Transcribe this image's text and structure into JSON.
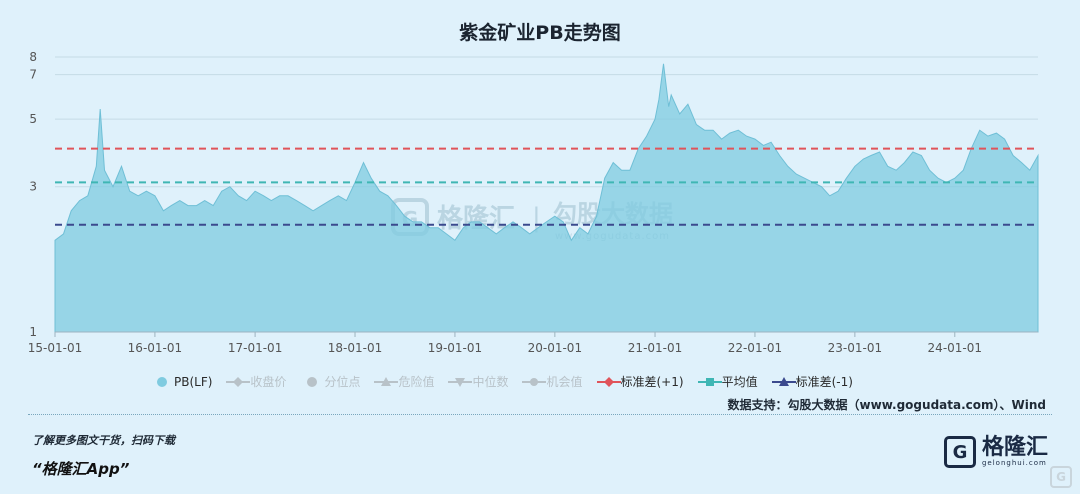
{
  "chart_data": {
    "type": "area",
    "title": "紫金矿业PB走势图",
    "x_tick_labels": [
      "15-01-01",
      "16-01-01",
      "17-01-01",
      "18-01-01",
      "19-01-01",
      "20-01-01",
      "21-01-01",
      "22-01-01",
      "23-01-01",
      "24-01-01"
    ],
    "y_tick_labels": [
      "1",
      "3",
      "5",
      "7",
      "8"
    ],
    "y_scale": "log",
    "ylim": [
      1,
      8
    ],
    "x_range": [
      "2015-01-01",
      "2024-10-31"
    ],
    "grid": "horizontal",
    "legend_position": "bottom",
    "series": [
      {
        "name": "PB(LF)",
        "color": "#7fcbe0",
        "x": [
          "2015-01-01",
          "2015-02-01",
          "2015-03-01",
          "2015-04-01",
          "2015-05-01",
          "2015-06-01",
          "2015-06-15",
          "2015-07-01",
          "2015-08-01",
          "2015-09-01",
          "2015-10-01",
          "2015-11-01",
          "2015-12-01",
          "2016-01-01",
          "2016-02-01",
          "2016-03-01",
          "2016-04-01",
          "2016-05-01",
          "2016-06-01",
          "2016-07-01",
          "2016-08-01",
          "2016-09-01",
          "2016-10-01",
          "2016-11-01",
          "2016-12-01",
          "2017-01-01",
          "2017-02-01",
          "2017-03-01",
          "2017-04-01",
          "2017-05-01",
          "2017-06-01",
          "2017-07-01",
          "2017-08-01",
          "2017-09-01",
          "2017-10-01",
          "2017-11-01",
          "2017-12-01",
          "2018-01-01",
          "2018-02-01",
          "2018-03-01",
          "2018-04-01",
          "2018-05-01",
          "2018-06-01",
          "2018-07-01",
          "2018-08-01",
          "2018-09-01",
          "2018-10-01",
          "2018-11-01",
          "2018-12-01",
          "2019-01-01",
          "2019-02-01",
          "2019-03-01",
          "2019-04-01",
          "2019-05-01",
          "2019-06-01",
          "2019-07-01",
          "2019-08-01",
          "2019-09-01",
          "2019-10-01",
          "2019-11-01",
          "2019-12-01",
          "2020-01-01",
          "2020-02-01",
          "2020-03-01",
          "2020-04-01",
          "2020-05-01",
          "2020-06-01",
          "2020-07-01",
          "2020-08-01",
          "2020-09-01",
          "2020-10-01",
          "2020-11-01",
          "2020-12-01",
          "2021-01-01",
          "2021-01-15",
          "2021-02-01",
          "2021-02-20",
          "2021-03-01",
          "2021-04-01",
          "2021-05-01",
          "2021-06-01",
          "2021-07-01",
          "2021-08-01",
          "2021-09-01",
          "2021-10-01",
          "2021-11-01",
          "2021-12-01",
          "2022-01-01",
          "2022-02-01",
          "2022-03-01",
          "2022-04-01",
          "2022-05-01",
          "2022-06-01",
          "2022-07-01",
          "2022-08-01",
          "2022-09-01",
          "2022-10-01",
          "2022-11-01",
          "2022-12-01",
          "2023-01-01",
          "2023-02-01",
          "2023-03-01",
          "2023-04-01",
          "2023-05-01",
          "2023-06-01",
          "2023-07-01",
          "2023-08-01",
          "2023-09-01",
          "2023-10-01",
          "2023-11-01",
          "2023-12-01",
          "2024-01-01",
          "2024-02-01",
          "2024-03-01",
          "2024-04-01",
          "2024-05-01",
          "2024-06-01",
          "2024-07-01",
          "2024-08-01",
          "2024-09-01",
          "2024-10-01",
          "2024-10-31"
        ],
        "y": [
          2.0,
          2.1,
          2.5,
          2.7,
          2.8,
          3.5,
          5.4,
          3.4,
          3.0,
          3.5,
          2.9,
          2.8,
          2.9,
          2.8,
          2.5,
          2.6,
          2.7,
          2.6,
          2.6,
          2.7,
          2.6,
          2.9,
          3.0,
          2.8,
          2.7,
          2.9,
          2.8,
          2.7,
          2.8,
          2.8,
          2.7,
          2.6,
          2.5,
          2.6,
          2.7,
          2.8,
          2.7,
          3.1,
          3.6,
          3.2,
          2.9,
          2.8,
          2.6,
          2.4,
          2.3,
          2.3,
          2.2,
          2.2,
          2.1,
          2.0,
          2.2,
          2.3,
          2.3,
          2.2,
          2.1,
          2.2,
          2.3,
          2.2,
          2.1,
          2.2,
          2.3,
          2.4,
          2.3,
          2.0,
          2.2,
          2.1,
          2.4,
          3.2,
          3.6,
          3.4,
          3.4,
          4.0,
          4.4,
          5.0,
          5.8,
          7.6,
          5.5,
          6.0,
          5.2,
          5.6,
          4.8,
          4.6,
          4.6,
          4.3,
          4.5,
          4.6,
          4.4,
          4.3,
          4.1,
          4.2,
          3.8,
          3.5,
          3.3,
          3.2,
          3.1,
          3.0,
          2.8,
          2.9,
          3.2,
          3.5,
          3.7,
          3.8,
          3.9,
          3.5,
          3.4,
          3.6,
          3.9,
          3.8,
          3.4,
          3.2,
          3.1,
          3.2,
          3.4,
          4.0,
          4.6,
          4.4,
          4.5,
          4.3,
          3.8,
          3.6,
          3.4,
          3.8
        ]
      },
      {
        "name": "标准差(+1)",
        "color": "#e0545a",
        "value": 4.0
      },
      {
        "name": "平均值",
        "color": "#3fb6b4",
        "value": 3.1
      },
      {
        "name": "标准差(-1)",
        "color": "#3b4a8e",
        "value": 2.25
      }
    ]
  },
  "legend": [
    {
      "label": "PB(LF)",
      "active": true,
      "marker": "dot",
      "color": "#7fcbe0"
    },
    {
      "label": "收盘价",
      "active": false,
      "marker": "line-diamond",
      "color": "#b8c2c8"
    },
    {
      "label": "分位点",
      "active": false,
      "marker": "dot",
      "color": "#b8c2c8"
    },
    {
      "label": "危险值",
      "active": false,
      "marker": "line-triangle",
      "color": "#b8c2c8"
    },
    {
      "label": "中位数",
      "active": false,
      "marker": "line-triangle-down",
      "color": "#b8c2c8"
    },
    {
      "label": "机会值",
      "active": false,
      "marker": "line-circle",
      "color": "#b8c2c8"
    },
    {
      "label": "标准差(+1)",
      "active": true,
      "marker": "line-diamond",
      "color": "#e0545a"
    },
    {
      "label": "平均值",
      "active": true,
      "marker": "line-square",
      "color": "#3fb6b4"
    },
    {
      "label": "标准差(-1)",
      "active": true,
      "marker": "line-triangle",
      "color": "#3b4a8e"
    }
  ],
  "watermark": {
    "cn": "格隆汇",
    "sep": "|",
    "cn2": "勾股大数据",
    "url": "www.gogudata.com"
  },
  "credit": "数据支持：勾股大数据（www.gogudata.com）、Wind",
  "promo": "了解更多图文干货，扫码下载",
  "app": "“格隆汇App”",
  "brand": {
    "logo": "G",
    "name": "格隆汇",
    "sub": "gelonghui.com"
  },
  "corner_badge": "G"
}
